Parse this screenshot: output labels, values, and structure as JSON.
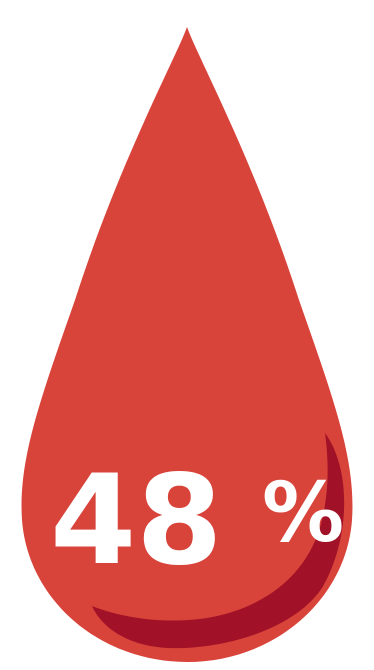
{
  "infographic": {
    "value": "48",
    "unit": "%",
    "percent": 48
  },
  "colors": {
    "drop": "#D8433A",
    "highlight": "#A11127",
    "text": "#FFFFFF",
    "background": "#FFFFFF"
  },
  "icons": {
    "drop": "blood-drop-icon"
  }
}
